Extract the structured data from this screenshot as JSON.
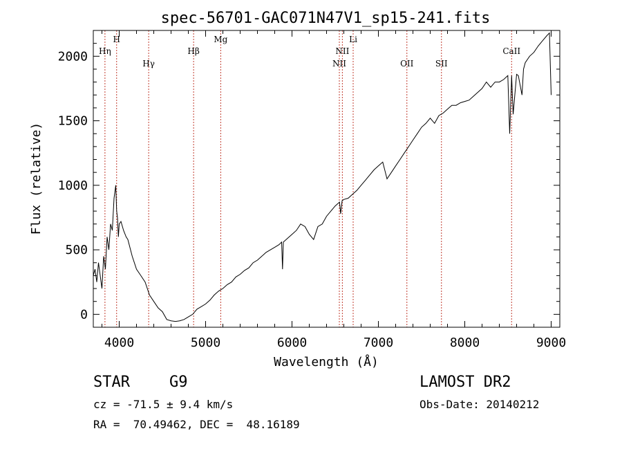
{
  "chart_data": {
    "type": "line",
    "title": "spec-56701-GAC071N47V1_sp15-241.fits",
    "xlabel": "Wavelength (Å)",
    "ylabel": "Flux (relative)",
    "xlim": [
      3700,
      9100
    ],
    "ylim": [
      -100,
      2200
    ],
    "xticks": [
      4000,
      5000,
      6000,
      7000,
      8000,
      9000
    ],
    "yticks": [
      0,
      500,
      1000,
      1500,
      2000
    ],
    "xticklabels": [
      "4000",
      "5000",
      "6000",
      "7000",
      "8000",
      "9000"
    ],
    "yticklabels": [
      "0",
      "500",
      "1000",
      "1500",
      "2000"
    ],
    "grid": false,
    "series": [
      {
        "x": [
          3700,
          3720,
          3740,
          3760,
          3780,
          3800,
          3820,
          3840,
          3860,
          3880,
          3900,
          3920,
          3940,
          3960,
          3970,
          3980,
          3990,
          4000,
          4020,
          4050,
          4080,
          4100,
          4150,
          4200,
          4250,
          4300,
          4350,
          4400,
          4450,
          4500,
          4550,
          4600,
          4650,
          4700,
          4750,
          4800,
          4850,
          4900,
          4950,
          5000,
          5050,
          5100,
          5150,
          5200,
          5250,
          5300,
          5350,
          5400,
          5450,
          5500,
          5550,
          5600,
          5650,
          5700,
          5750,
          5800,
          5850,
          5880,
          5890,
          5900,
          5950,
          6000,
          6050,
          6100,
          6150,
          6200,
          6250,
          6300,
          6350,
          6400,
          6450,
          6500,
          6550,
          6563,
          6580,
          6600,
          6650,
          6700,
          6750,
          6800,
          6850,
          6900,
          6950,
          7000,
          7050,
          7100,
          7150,
          7200,
          7250,
          7300,
          7350,
          7400,
          7450,
          7500,
          7550,
          7600,
          7650,
          7700,
          7750,
          7800,
          7850,
          7900,
          7950,
          8000,
          8050,
          8100,
          8150,
          8200,
          8250,
          8300,
          8350,
          8400,
          8450,
          8498,
          8520,
          8542,
          8560,
          8600,
          8620,
          8662,
          8680,
          8700,
          8750,
          8800,
          8850,
          8900,
          8950,
          8980,
          9000
        ],
        "y": [
          300,
          350,
          250,
          400,
          300,
          200,
          450,
          350,
          600,
          500,
          700,
          650,
          900,
          1000,
          800,
          750,
          600,
          700,
          720,
          650,
          600,
          580,
          450,
          350,
          300,
          250,
          150,
          100,
          50,
          20,
          -40,
          -50,
          -55,
          -50,
          -40,
          -20,
          0,
          40,
          60,
          80,
          110,
          150,
          180,
          200,
          230,
          250,
          290,
          310,
          340,
          360,
          400,
          420,
          450,
          480,
          500,
          520,
          540,
          560,
          350,
          560,
          590,
          620,
          650,
          700,
          680,
          620,
          580,
          680,
          700,
          760,
          800,
          840,
          870,
          780,
          880,
          890,
          900,
          930,
          960,
          1000,
          1040,
          1080,
          1120,
          1150,
          1180,
          1050,
          1100,
          1150,
          1200,
          1250,
          1300,
          1350,
          1400,
          1450,
          1480,
          1520,
          1480,
          1540,
          1560,
          1590,
          1620,
          1620,
          1640,
          1650,
          1660,
          1690,
          1720,
          1750,
          1800,
          1760,
          1800,
          1800,
          1820,
          1850,
          1400,
          1850,
          1550,
          1860,
          1850,
          1700,
          1900,
          1950,
          2000,
          2030,
          2080,
          2120,
          2160,
          2180,
          1700
        ]
      }
    ],
    "line_color": "#000000",
    "marker_color": "#c0392b",
    "markers": [
      {
        "label": "Hη",
        "wavelength": 3835,
        "row": 3
      },
      {
        "label": "H",
        "wavelength": 3970,
        "row": 1
      },
      {
        "label": "Hγ",
        "wavelength": 4341,
        "row": 4
      },
      {
        "label": "Hβ",
        "wavelength": 4861,
        "row": 3
      },
      {
        "label": "Mg",
        "wavelength": 5175,
        "row": 1
      },
      {
        "label": "NII",
        "wavelength": 6548,
        "row": 4
      },
      {
        "label": "NII",
        "wavelength": 6583,
        "row": 3
      },
      {
        "label": "Li",
        "wavelength": 6708,
        "row": 1
      },
      {
        "label": "OII",
        "wavelength": 7330,
        "row": 4
      },
      {
        "label": "SII",
        "wavelength": 7730,
        "row": 4
      },
      {
        "label": "CaII",
        "wavelength": 8542,
        "row": 3
      }
    ]
  },
  "info": {
    "object_type": "STAR",
    "subclass": "G9",
    "survey": "LAMOST DR2",
    "redshift": "cz = -71.5 ± 9.4 km/s",
    "obs_date": "Obs-Date: 20140212",
    "coords": "RA =  70.49462, DEC =  48.16189"
  }
}
